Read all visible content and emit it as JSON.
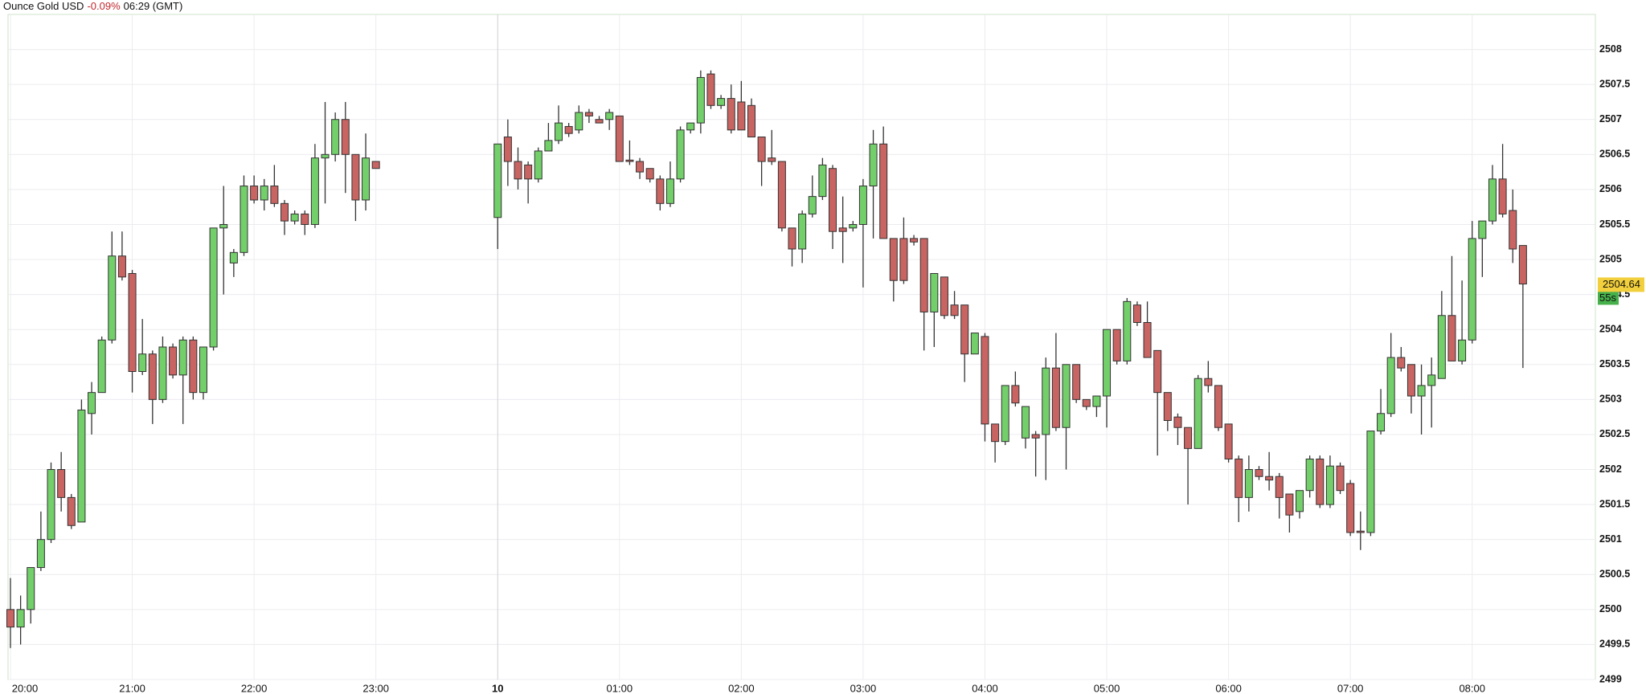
{
  "chart_data": {
    "type": "candlestick",
    "title": "Ounce Gold USD",
    "change": "-0.09%",
    "time": "06:29 (GMT)",
    "up_color": "#72cf6a",
    "down_color": "#c86462",
    "grid": true,
    "ylim": [
      2499.0,
      2508.5
    ],
    "yticks": [
      2499,
      2499.5,
      2500,
      2500.5,
      2501,
      2501.5,
      2502,
      2502.5,
      2503,
      2503.5,
      2504,
      2504.5,
      2505,
      2505.5,
      2506,
      2506.5,
      2507,
      2507.5,
      2508
    ],
    "xticks": [
      "20:00",
      "21:00",
      "22:00",
      "23:00",
      {
        "value": "00:00",
        "label": "10"
      },
      "01:00",
      "02:00",
      "03:00",
      "04:00",
      "05:00",
      "06:00",
      "07:00",
      "08:00"
    ],
    "last_value": 2504.64,
    "countdown": "55s",
    "x": [
      "20:00",
      "20:05",
      "20:10",
      "20:15",
      "20:20",
      "20:25",
      "20:30",
      "20:35",
      "20:40",
      "20:45",
      "20:50",
      "20:55",
      "21:00",
      "21:05",
      "21:10",
      "21:15",
      "21:20",
      "21:25",
      "21:30",
      "21:35",
      "21:40",
      "21:45",
      "21:50",
      "21:55",
      "22:00",
      "22:05",
      "22:10",
      "22:15",
      "22:20",
      "22:25",
      "22:30",
      "22:35",
      "22:40",
      "22:45",
      "22:50",
      "22:55",
      "23:00",
      "00:00",
      "00:05",
      "00:10",
      "00:15",
      "00:20",
      "00:25",
      "00:30",
      "00:35",
      "00:40",
      "00:45",
      "00:50",
      "00:55",
      "01:00",
      "01:05",
      "01:10",
      "01:15",
      "01:20",
      "01:25",
      "01:30",
      "01:35",
      "01:40",
      "01:45",
      "01:50",
      "01:55",
      "02:00",
      "02:05",
      "02:10",
      "02:15",
      "02:20",
      "02:25",
      "02:30",
      "02:35",
      "02:40",
      "02:45",
      "02:50",
      "02:55",
      "03:00",
      "03:05",
      "03:10",
      "03:15",
      "03:20",
      "03:25",
      "03:30",
      "03:35",
      "03:40",
      "03:45",
      "03:50",
      "03:55",
      "04:00",
      "04:05",
      "04:10",
      "04:15",
      "04:20",
      "04:25",
      "04:30",
      "04:35",
      "04:40",
      "04:45",
      "04:50",
      "04:55",
      "05:00",
      "05:05",
      "05:10",
      "05:15",
      "05:20",
      "05:25",
      "05:30",
      "05:35",
      "05:40",
      "05:45",
      "05:50",
      "05:55",
      "06:00",
      "06:05",
      "06:10",
      "06:15",
      "06:20",
      "06:25",
      "06:30",
      "06:35",
      "06:40",
      "06:45",
      "06:50",
      "06:55",
      "07:00",
      "07:05",
      "07:10",
      "07:15",
      "07:20",
      "07:25",
      "07:30",
      "07:35",
      "07:40",
      "07:45",
      "07:50",
      "07:55",
      "08:00",
      "08:05",
      "08:10",
      "08:15",
      "08:20",
      "08:25"
    ],
    "open": [
      2500.0,
      2499.75,
      2500.0,
      2500.6,
      2501.0,
      2502.0,
      2501.6,
      2501.25,
      2502.8,
      2503.1,
      2503.85,
      2505.05,
      2504.8,
      2503.4,
      2503.65,
      2503.0,
      2503.75,
      2503.35,
      2503.85,
      2503.1,
      2503.75,
      2505.45,
      2504.95,
      2505.1,
      2506.05,
      2505.85,
      2506.05,
      2505.8,
      2505.55,
      2505.65,
      2505.5,
      2506.45,
      2506.5,
      2507.0,
      2506.5,
      2505.85,
      2506.4,
      2505.6,
      2506.75,
      2506.4,
      2506.35,
      2506.15,
      2506.55,
      2506.7,
      2506.9,
      2506.85,
      2507.1,
      2507.0,
      2507.0,
      2507.05,
      2506.42,
      2506.4,
      2506.3,
      2506.15,
      2505.8,
      2506.15,
      2506.85,
      2506.95,
      2507.65,
      2507.2,
      2507.3,
      2507.25,
      2507.2,
      2506.75,
      2506.45,
      2506.4,
      2505.45,
      2505.15,
      2505.65,
      2505.9,
      2506.3,
      2505.45,
      2505.45,
      2505.5,
      2506.05,
      2506.65,
      2505.3,
      2505.3,
      2505.3,
      2505.3,
      2504.25,
      2504.75,
      2504.35,
      2504.35,
      2503.65,
      2503.9,
      2502.65,
      2502.4,
      2503.2,
      2502.45,
      2502.5,
      2502.5,
      2503.45,
      2502.6,
      2503.5,
      2503.0,
      2502.9,
      2503.05,
      2504.0,
      2503.55,
      2504.35,
      2504.1,
      2503.7,
      2503.1,
      2502.75,
      2502.6,
      2502.3,
      2503.3,
      2503.2,
      2502.65,
      2502.15,
      2501.6,
      2502.0,
      2501.9,
      2501.9,
      2501.65,
      2501.4,
      2501.7,
      2502.15,
      2501.5,
      2502.05,
      2501.8,
      2501.12,
      2501.1,
      2502.55,
      2502.8,
      2503.6,
      2503.5,
      2503.05,
      2503.2,
      2503.3,
      2504.2,
      2503.55,
      2503.85,
      2505.3,
      2505.55,
      2506.15,
      2505.7,
      2505.2
    ],
    "high": [
      2500.45,
      2500.2,
      2500.6,
      2501.4,
      2502.1,
      2502.25,
      2501.65,
      2503.0,
      2503.25,
      2503.9,
      2505.4,
      2505.4,
      2504.85,
      2504.15,
      2503.7,
      2503.9,
      2503.8,
      2503.9,
      2503.9,
      2503.75,
      2505.45,
      2506.05,
      2505.15,
      2506.2,
      2506.2,
      2506.15,
      2506.35,
      2505.85,
      2505.7,
      2505.7,
      2506.65,
      2507.25,
      2507.1,
      2507.25,
      2506.5,
      2506.8,
      2506.4,
      2506.65,
      2507.0,
      2506.6,
      2506.4,
      2506.6,
      2506.95,
      2507.2,
      2506.95,
      2507.2,
      2507.15,
      2507.05,
      2507.15,
      2507.05,
      2506.7,
      2506.45,
      2506.3,
      2506.2,
      2506.4,
      2506.9,
      2506.95,
      2507.7,
      2507.7,
      2507.35,
      2507.5,
      2507.55,
      2507.3,
      2506.75,
      2506.85,
      2506.4,
      2505.45,
      2505.7,
      2506.2,
      2506.45,
      2506.35,
      2505.9,
      2505.55,
      2506.15,
      2506.85,
      2506.9,
      2505.3,
      2505.6,
      2505.35,
      2505.3,
      2504.8,
      2504.75,
      2504.55,
      2504.35,
      2503.95,
      2503.95,
      2502.65,
      2503.2,
      2503.4,
      2502.9,
      2502.55,
      2503.6,
      2503.95,
      2503.5,
      2503.5,
      2503.0,
      2503.05,
      2504.0,
      2504.0,
      2504.45,
      2504.4,
      2504.4,
      2503.7,
      2503.1,
      2502.8,
      2502.6,
      2503.35,
      2503.55,
      2503.2,
      2502.65,
      2502.2,
      2502.2,
      2502.05,
      2502.25,
      2501.95,
      2501.65,
      2501.7,
      2502.2,
      2502.2,
      2502.2,
      2502.1,
      2501.85,
      2501.4,
      2502.55,
      2503.15,
      2503.95,
      2503.75,
      2503.5,
      2503.5,
      2503.6,
      2504.55,
      2505.05,
      2504.7,
      2505.55,
      2505.55,
      2506.35,
      2506.65,
      2506.0,
      2505.2
    ],
    "low": [
      2499.45,
      2499.5,
      2499.8,
      2500.55,
      2500.95,
      2501.4,
      2501.15,
      2501.25,
      2502.5,
      2503.1,
      2503.8,
      2504.7,
      2503.1,
      2503.35,
      2502.65,
      2502.95,
      2503.3,
      2502.65,
      2503.0,
      2503.0,
      2503.7,
      2504.5,
      2504.75,
      2505.05,
      2505.8,
      2505.7,
      2505.75,
      2505.35,
      2505.5,
      2505.35,
      2505.45,
      2505.8,
      2506.4,
      2505.95,
      2505.55,
      2505.7,
      2506.3,
      2505.15,
      2506.05,
      2506.0,
      2505.8,
      2506.1,
      2506.55,
      2506.65,
      2506.75,
      2506.8,
      2506.95,
      2506.95,
      2506.85,
      2506.4,
      2506.35,
      2506.15,
      2506.1,
      2505.7,
      2505.75,
      2506.1,
      2506.8,
      2506.8,
      2507.15,
      2507.15,
      2506.8,
      2506.85,
      2506.75,
      2506.05,
      2506.35,
      2505.4,
      2504.9,
      2504.95,
      2505.6,
      2505.85,
      2505.15,
      2504.95,
      2505.4,
      2504.6,
      2505.3,
      2505.3,
      2504.4,
      2504.65,
      2505.2,
      2503.7,
      2503.75,
      2504.15,
      2504.15,
      2503.25,
      2503.65,
      2502.4,
      2502.1,
      2502.35,
      2502.9,
      2502.3,
      2501.9,
      2501.85,
      2502.55,
      2502.0,
      2502.95,
      2502.85,
      2502.75,
      2502.6,
      2503.5,
      2503.5,
      2504.05,
      2503.6,
      2502.2,
      2502.55,
      2502.35,
      2501.5,
      2502.3,
      2503.1,
      2502.55,
      2502.1,
      2501.25,
      2501.4,
      2501.85,
      2501.7,
      2501.3,
      2501.1,
      2501.3,
      2501.6,
      2501.45,
      2501.45,
      2501.65,
      2501.05,
      2500.85,
      2501.05,
      2502.5,
      2502.75,
      2503.4,
      2502.8,
      2502.5,
      2502.6,
      2503.3,
      2503.55,
      2503.5,
      2503.8,
      2504.75,
      2505.5,
      2505.6,
      2504.95,
      2503.45
    ],
    "close": [
      2499.75,
      2500.0,
      2500.6,
      2501.0,
      2502.0,
      2501.6,
      2501.2,
      2502.85,
      2503.1,
      2503.85,
      2505.05,
      2504.75,
      2503.4,
      2503.65,
      2503.0,
      2503.75,
      2503.35,
      2503.85,
      2503.1,
      2503.75,
      2505.45,
      2505.5,
      2505.1,
      2506.05,
      2505.85,
      2506.05,
      2505.8,
      2505.55,
      2505.65,
      2505.5,
      2506.45,
      2506.5,
      2507.0,
      2506.5,
      2505.85,
      2506.45,
      2506.3,
      2506.65,
      2506.4,
      2506.15,
      2506.15,
      2506.55,
      2506.7,
      2506.95,
      2506.8,
      2507.1,
      2507.05,
      2506.95,
      2507.1,
      2506.4,
      2506.4,
      2506.25,
      2506.15,
      2505.8,
      2506.15,
      2506.85,
      2506.95,
      2507.6,
      2507.2,
      2507.3,
      2506.85,
      2506.85,
      2506.75,
      2506.4,
      2506.4,
      2505.45,
      2505.15,
      2505.65,
      2505.9,
      2506.35,
      2505.4,
      2505.4,
      2505.5,
      2506.05,
      2506.65,
      2505.3,
      2504.7,
      2504.7,
      2505.25,
      2504.25,
      2504.8,
      2504.2,
      2504.2,
      2503.65,
      2503.95,
      2502.65,
      2502.4,
      2503.2,
      2502.95,
      2502.9,
      2502.45,
      2503.45,
      2502.6,
      2503.5,
      2503.0,
      2502.9,
      2503.05,
      2504.0,
      2503.55,
      2504.4,
      2504.1,
      2503.6,
      2503.1,
      2502.7,
      2502.6,
      2502.3,
      2503.3,
      2503.2,
      2502.6,
      2502.15,
      2501.6,
      2502.0,
      2501.9,
      2501.85,
      2501.6,
      2501.35,
      2501.7,
      2502.15,
      2501.5,
      2502.05,
      2501.7,
      2501.1,
      2501.1,
      2502.55,
      2502.8,
      2503.6,
      2503.45,
      2503.05,
      2503.2,
      2503.35,
      2504.2,
      2503.55,
      2503.85,
      2505.3,
      2505.55,
      2506.15,
      2505.65,
      2505.15,
      2504.65
    ]
  }
}
